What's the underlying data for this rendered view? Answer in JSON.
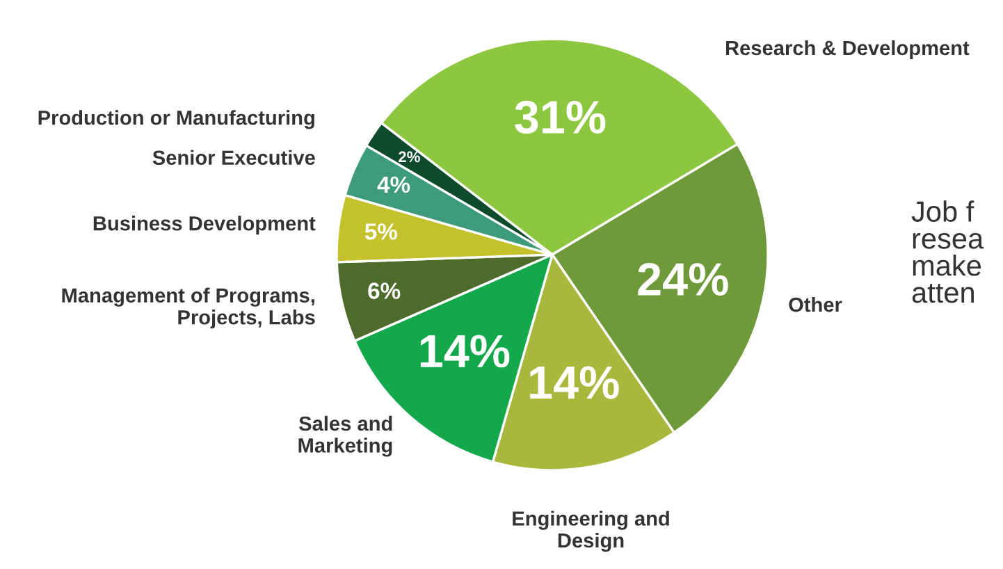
{
  "chart_data": {
    "type": "pie",
    "categories": [
      "Research & Development",
      "Other",
      "Engineering and\nDesign",
      "Sales and\nMarketing",
      "Management of Programs,\nProjects, Labs",
      "Business Development",
      "Senior Executive",
      "Production or Manufacturing"
    ],
    "values": [
      31,
      24,
      14,
      14,
      6,
      5,
      4,
      2
    ],
    "value_labels": [
      "31%",
      "24%",
      "14%",
      "14%",
      "6%",
      "5%",
      "4%",
      "2%"
    ],
    "colors": [
      "#8dc63f",
      "#6f9a3a",
      "#a9b83c",
      "#12a84b",
      "#4e6b2b",
      "#c3c22c",
      "#3d9a7c",
      "#0e4a2c"
    ],
    "annotations": [
      "Job f\nresea\nmake\natten"
    ],
    "legend": false
  }
}
